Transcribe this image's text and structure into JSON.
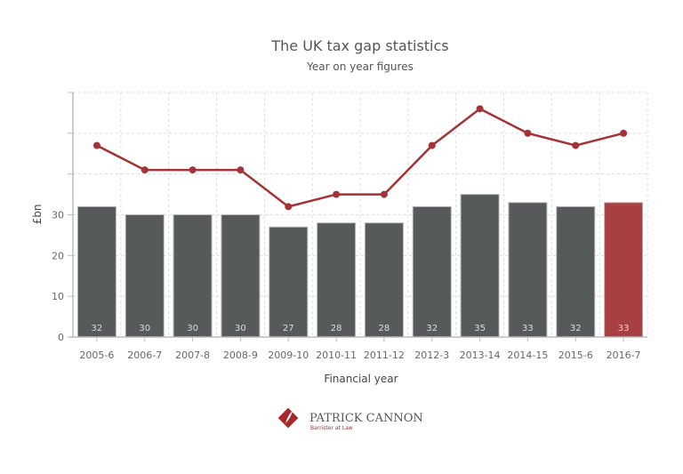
{
  "chart_data": {
    "type": "bar",
    "title": "The UK tax gap statistics",
    "subtitle": "Year on year figures",
    "xlabel": "Financial year",
    "ylabel": "£bn",
    "ylim": [
      0,
      60
    ],
    "yticks_labeled": [
      0,
      10,
      20,
      30
    ],
    "yticks": [
      0,
      10,
      20,
      30,
      40,
      50,
      60
    ],
    "grid": true,
    "categories": [
      "2005-6",
      "2006-7",
      "2007-8",
      "2008-9",
      "2009-10",
      "2010-11",
      "2011-12",
      "2012-3",
      "2013-14",
      "2014-15",
      "2015-6",
      "2016-7"
    ],
    "series": [
      {
        "type": "bar",
        "values": [
          32,
          30,
          30,
          30,
          27,
          28,
          28,
          32,
          35,
          33,
          32,
          33
        ]
      },
      {
        "type": "line",
        "values": [
          47,
          41,
          41,
          41,
          32,
          35,
          35,
          47,
          56,
          50,
          47,
          50
        ]
      }
    ],
    "colors": {
      "bar": "#575a5b",
      "highlight_bar": "#a84042",
      "line": "#a33336"
    },
    "highlight_index": 11
  },
  "logo": {
    "name": "PATRICK CANNON",
    "tagline": "Barrister at Law"
  }
}
